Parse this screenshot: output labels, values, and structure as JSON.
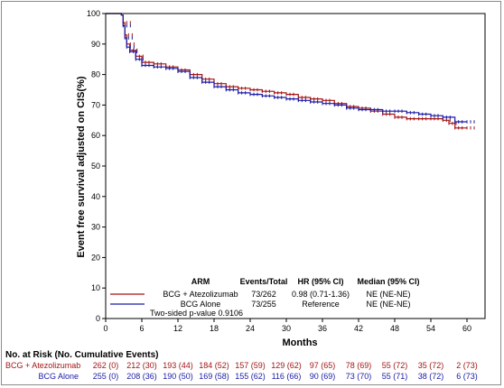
{
  "chart_data": {
    "type": "line",
    "xlabel": "Months",
    "ylabel": "Event free survival adjusted on CIS(%)",
    "xlim": [
      0,
      63
    ],
    "ylim": [
      0,
      100
    ],
    "xticks": [
      0,
      6,
      12,
      18,
      24,
      30,
      36,
      42,
      48,
      54,
      60
    ],
    "yticks": [
      0,
      10,
      20,
      30,
      40,
      50,
      60,
      70,
      80,
      90,
      100
    ],
    "legend": {
      "headers": [
        "ARM",
        "Events/Total",
        "HR (95% CI)",
        "Median (95% CI)"
      ],
      "rows": [
        {
          "arm": "BCG + Atezolizumab",
          "events": "73/262",
          "hr": "0.98 (0.71-1.36)",
          "median": "NE (NE-NE)",
          "color": "#a31515"
        },
        {
          "arm": "BCG Alone",
          "events": "73/255",
          "hr": "Reference",
          "median": "NE (NE-NE)",
          "color": "#1a1aa6"
        }
      ],
      "pvalue": "Two-sided p-value 0.9106"
    },
    "series": [
      {
        "name": "BCG + Atezolizumab",
        "color": "#a31515",
        "x": [
          0,
          2.6,
          2.9,
          3.2,
          3.5,
          4,
          5,
          6,
          8,
          10,
          12,
          14,
          16,
          18,
          20,
          22,
          24,
          26,
          28,
          30,
          32,
          34,
          36,
          38,
          40,
          42,
          44,
          46,
          48,
          50,
          52,
          54,
          56,
          57,
          58,
          60
        ],
        "y": [
          100,
          99.5,
          97,
          93,
          90,
          88,
          86,
          84,
          83.5,
          82.5,
          81.5,
          80,
          78.5,
          77,
          76,
          75.5,
          75,
          74.5,
          74,
          73.5,
          72.5,
          72,
          71.5,
          70.5,
          69.5,
          69,
          68,
          67,
          66,
          65.5,
          65.5,
          65.5,
          65,
          64,
          62.5,
          62.5
        ]
      },
      {
        "name": "BCG Alone",
        "color": "#1a1aa6",
        "x": [
          0,
          2.6,
          2.9,
          3.2,
          3.5,
          4,
          5,
          6,
          8,
          10,
          12,
          14,
          16,
          18,
          20,
          22,
          24,
          26,
          28,
          30,
          32,
          34,
          36,
          38,
          40,
          42,
          44,
          46,
          48,
          50,
          52,
          54,
          56,
          58,
          60
        ],
        "y": [
          100,
          99.5,
          96,
          92,
          89,
          87.5,
          85,
          83,
          82.5,
          82,
          81,
          79,
          77.5,
          76,
          75,
          74,
          73.5,
          73,
          72.5,
          72,
          71.5,
          71,
          70.5,
          70,
          69,
          68.5,
          68.5,
          68,
          68,
          67.5,
          67,
          66.5,
          66,
          64.5,
          64.5
        ]
      }
    ]
  },
  "risk_table": {
    "title": "No. at Risk (No. Cumulative Events)",
    "rows": [
      {
        "label": "BCG + Atezolizumab",
        "color": "#a31515",
        "values": [
          "262 (0)",
          "212 (30)",
          "193 (44)",
          "184 (52)",
          "157 (59)",
          "129 (62)",
          "97 (65)",
          "78 (69)",
          "55 (72)",
          "35 (72)",
          "2 (73)"
        ]
      },
      {
        "label": "BCG Alone",
        "color": "#1a1aa6",
        "values": [
          "255 (0)",
          "208 (36)",
          "190 (50)",
          "169 (58)",
          "155 (62)",
          "116 (66)",
          "90 (69)",
          "73 (70)",
          "55 (71)",
          "38 (72)",
          "6 (73)"
        ]
      }
    ]
  }
}
